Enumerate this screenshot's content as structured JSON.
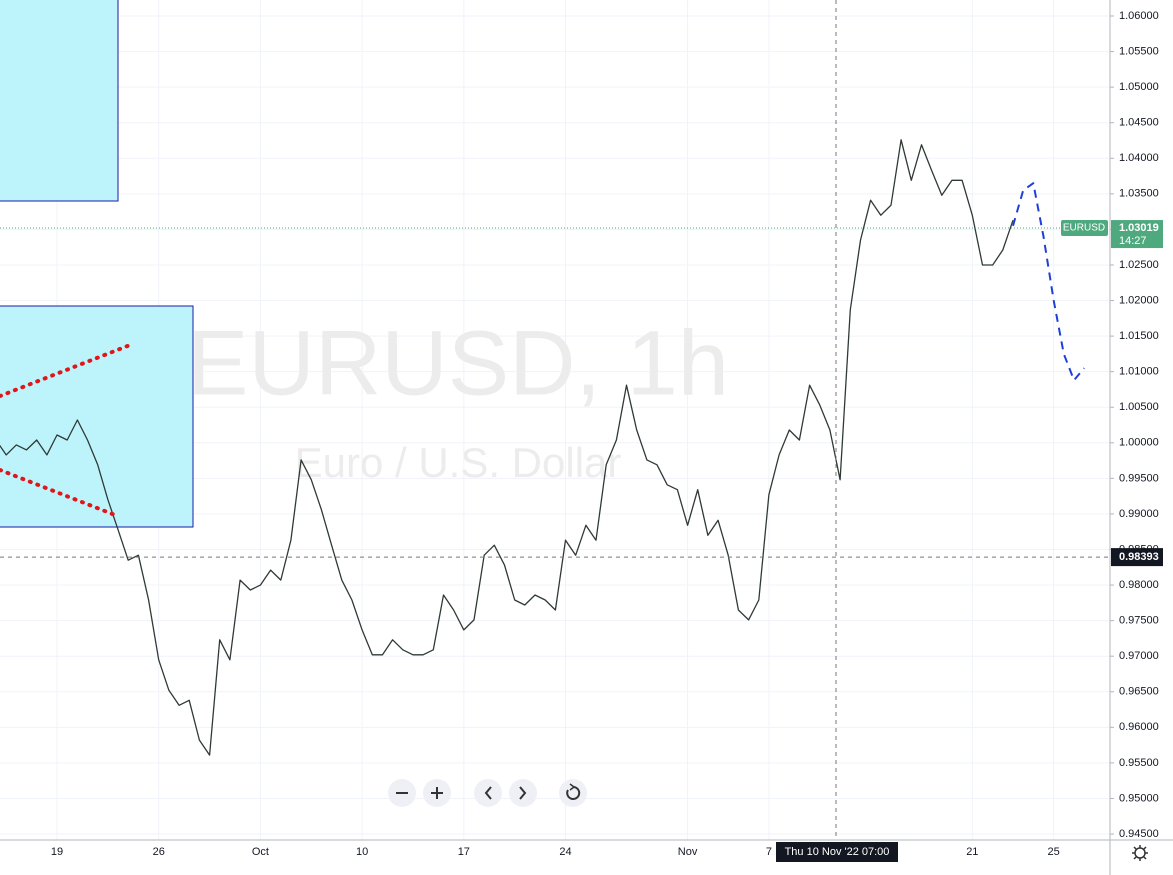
{
  "symbol_tag": "EURUSD",
  "watermark": {
    "title": "EURUSD, 1h",
    "subtitle": "Euro / U.S. Dollar"
  },
  "countdown": "14:27",
  "crosshair_time": "Thu 10 Nov '22  07:00",
  "chart_data": {
    "type": "line",
    "categories": [
      null,
      null,
      null,
      null,
      null,
      null,
      "19",
      null,
      null,
      null,
      null,
      null,
      null,
      null,
      null,
      null,
      "26",
      null,
      null,
      null,
      null,
      null,
      null,
      null,
      null,
      null,
      "Oct",
      null,
      null,
      null,
      null,
      null,
      null,
      null,
      null,
      null,
      "10",
      null,
      null,
      null,
      null,
      null,
      null,
      null,
      null,
      null,
      "17",
      null,
      null,
      null,
      null,
      null,
      null,
      null,
      null,
      null,
      "24",
      null,
      null,
      null,
      null,
      null,
      null,
      null,
      null,
      null,
      null,
      null,
      "Nov",
      null,
      null,
      null,
      null,
      null,
      null,
      null,
      "7",
      null,
      null,
      null,
      null,
      null,
      null,
      null,
      null,
      null,
      null,
      null,
      null,
      null,
      null,
      null,
      null,
      null,
      null,
      null,
      "21",
      null,
      null,
      null,
      null,
      null,
      null,
      null,
      "25",
      null,
      null,
      null
    ],
    "series": [
      {
        "color": "#2f3a35",
        "values": [
          1.0004,
          0.9983,
          0.9997,
          0.999,
          1.0004,
          0.9983,
          1.0011,
          1.0004,
          1.0032,
          1.0004,
          0.9969,
          0.992,
          0.9878,
          0.9835,
          0.9842,
          0.9779,
          0.9695,
          0.9652,
          0.9631,
          0.9638,
          0.9582,
          0.9561,
          0.9723,
          0.9695,
          0.9807,
          0.9793,
          0.98,
          0.9821,
          0.9807,
          0.9863,
          0.9976,
          0.9948,
          0.9906,
          0.9856,
          0.9807,
          0.9779,
          0.9737,
          0.9702,
          0.9702,
          0.9723,
          0.9709,
          0.9702,
          0.9702,
          0.9709,
          0.9786,
          0.9765,
          0.9737,
          0.9751,
          0.9842,
          0.9856,
          0.9828,
          0.9779,
          0.9772,
          0.9786,
          0.9779,
          0.9765,
          0.9863,
          0.9842,
          0.9884,
          0.9863,
          0.9969,
          1.0004,
          1.0081,
          1.0018,
          0.9976,
          0.9969,
          0.9941,
          0.9934,
          0.9884,
          0.9934,
          0.987,
          0.9891,
          0.9842,
          0.9765,
          0.9751,
          0.9779,
          0.9927,
          0.9983,
          1.0018,
          1.0004,
          1.0081,
          1.0053,
          1.0018,
          0.9948,
          1.0187,
          1.0285,
          1.0341,
          1.032,
          1.0334,
          1.0426,
          1.0369,
          1.0419,
          1.0383,
          1.0348,
          1.0369,
          1.0369,
          1.032,
          1.025,
          1.025,
          1.0271,
          1.0313,
          null,
          null,
          null,
          null,
          null,
          null,
          null
        ]
      },
      {
        "color": "#1e3fd8",
        "dashed": true,
        "values": [
          null,
          null,
          null,
          null,
          null,
          null,
          null,
          null,
          null,
          null,
          null,
          null,
          null,
          null,
          null,
          null,
          null,
          null,
          null,
          null,
          null,
          null,
          null,
          null,
          null,
          null,
          null,
          null,
          null,
          null,
          null,
          null,
          null,
          null,
          null,
          null,
          null,
          null,
          null,
          null,
          null,
          null,
          null,
          null,
          null,
          null,
          null,
          null,
          null,
          null,
          null,
          null,
          null,
          null,
          null,
          null,
          null,
          null,
          null,
          null,
          null,
          null,
          null,
          null,
          null,
          null,
          null,
          null,
          null,
          null,
          null,
          null,
          null,
          null,
          null,
          null,
          null,
          null,
          null,
          null,
          null,
          null,
          null,
          null,
          null,
          null,
          null,
          null,
          null,
          null,
          null,
          null,
          null,
          null,
          null,
          null,
          null,
          null,
          null,
          null,
          1.0305,
          1.0355,
          1.0365,
          1.029,
          1.02,
          1.0125,
          1.0088,
          1.0105
        ]
      }
    ],
    "ylim": [
      0.94416,
      1.06225
    ],
    "yticks": [
      {
        "value": 0.945,
        "label": "0.94500"
      },
      {
        "value": 0.95,
        "label": "0.95000"
      },
      {
        "value": 0.955,
        "label": "0.95500"
      },
      {
        "value": 0.96,
        "label": "0.96000"
      },
      {
        "value": 0.965,
        "label": "0.96500"
      },
      {
        "value": 0.97,
        "label": "0.97000"
      },
      {
        "value": 0.975,
        "label": "0.97500"
      },
      {
        "value": 0.98,
        "label": "0.98000"
      },
      {
        "value": 0.985,
        "label": "0.98500"
      },
      {
        "value": 0.99,
        "label": "0.99000"
      },
      {
        "value": 0.995,
        "label": "0.99500"
      },
      {
        "value": 1.0,
        "label": "1.00000"
      },
      {
        "value": 1.005,
        "label": "1.00500"
      },
      {
        "value": 1.01,
        "label": "1.01000"
      },
      {
        "value": 1.015,
        "label": "1.01500"
      },
      {
        "value": 1.02,
        "label": "1.02000"
      },
      {
        "value": 1.025,
        "label": "1.02500"
      },
      {
        "value": 1.03,
        "label": "1.03000"
      },
      {
        "value": 1.035,
        "label": "1.03500"
      },
      {
        "value": 1.04,
        "label": "1.04000"
      },
      {
        "value": 1.045,
        "label": "1.04500"
      },
      {
        "value": 1.05,
        "label": "1.05000"
      },
      {
        "value": 1.055,
        "label": "1.05500"
      },
      {
        "value": 1.06,
        "label": "1.06000"
      }
    ],
    "last_price": 1.03019,
    "crosshair_price": 0.98393,
    "grid": true
  }
}
